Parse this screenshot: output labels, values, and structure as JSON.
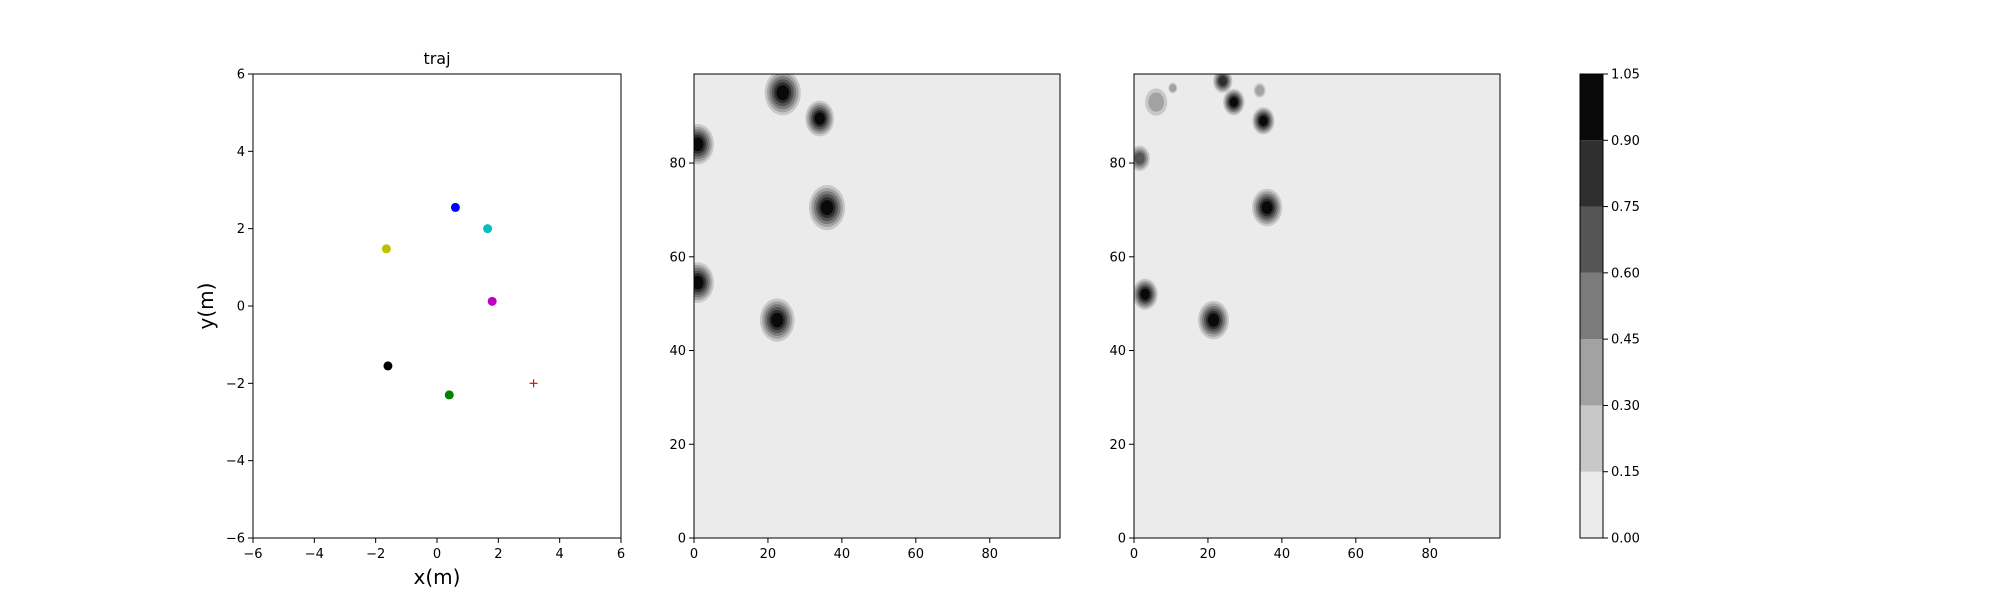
{
  "chart_data": [
    {
      "type": "scatter",
      "title": "traj",
      "xlabel": "x(m)",
      "ylabel": "y(m)",
      "xlim": [
        -6,
        6
      ],
      "ylim": [
        -6,
        6
      ],
      "xticks": [
        -6,
        -4,
        -2,
        0,
        2,
        4,
        6
      ],
      "yticks": [
        -6,
        -4,
        -2,
        0,
        2,
        4,
        6
      ],
      "grid": false,
      "points": [
        {
          "x": 0.6,
          "y": 2.55,
          "color": "#0000ff",
          "marker": "circle"
        },
        {
          "x": 1.65,
          "y": 2.0,
          "color": "#00bfbf",
          "marker": "circle"
        },
        {
          "x": -1.65,
          "y": 1.48,
          "color": "#bfbf00",
          "marker": "circle"
        },
        {
          "x": 1.8,
          "y": 0.12,
          "color": "#bf00bf",
          "marker": "circle"
        },
        {
          "x": -1.6,
          "y": -1.55,
          "color": "#000000",
          "marker": "circle"
        },
        {
          "x": 0.4,
          "y": -2.3,
          "color": "#008000",
          "marker": "circle"
        },
        {
          "x": 3.15,
          "y": -2.0,
          "color": "#ff0000",
          "marker": "plus"
        }
      ]
    },
    {
      "type": "heatmap",
      "title": "",
      "xlim": [
        0,
        99
      ],
      "ylim": [
        0,
        99
      ],
      "xticks": [
        0,
        20,
        40,
        60,
        80
      ],
      "yticks": [
        0,
        20,
        40,
        60,
        80
      ],
      "background_level": 0.05,
      "blobs": [
        {
          "x": 24,
          "y": 95,
          "r": 4.5,
          "peak": 1.0
        },
        {
          "x": 34,
          "y": 89.5,
          "r": 3.5,
          "peak": 1.0
        },
        {
          "x": 1,
          "y": 84,
          "r": 4,
          "peak": 1.0
        },
        {
          "x": 36,
          "y": 70.5,
          "r": 4.5,
          "peak": 1.0
        },
        {
          "x": 1,
          "y": 54.5,
          "r": 4,
          "peak": 1.0
        },
        {
          "x": 22.5,
          "y": 46.5,
          "r": 4.3,
          "peak": 1.0
        }
      ]
    },
    {
      "type": "heatmap",
      "title": "",
      "xlim": [
        0,
        99
      ],
      "ylim": [
        0,
        99
      ],
      "xticks": [
        0,
        20,
        40,
        60,
        80
      ],
      "yticks": [
        0,
        20,
        40,
        60,
        80
      ],
      "background_level": 0.05,
      "blobs": [
        {
          "x": 6,
          "y": 93,
          "r": 2.6,
          "peak": 0.35
        },
        {
          "x": 10.5,
          "y": 96,
          "r": 0.8,
          "peak": 0.3
        },
        {
          "x": 24,
          "y": 97.5,
          "r": 2.2,
          "peak": 0.8
        },
        {
          "x": 27,
          "y": 93,
          "r": 2.5,
          "peak": 0.95
        },
        {
          "x": 34,
          "y": 95.5,
          "r": 1.2,
          "peak": 0.3
        },
        {
          "x": 35,
          "y": 89,
          "r": 2.6,
          "peak": 0.95
        },
        {
          "x": 1.5,
          "y": 81,
          "r": 2.4,
          "peak": 0.7
        },
        {
          "x": 36,
          "y": 70.5,
          "r": 3.7,
          "peak": 1.0
        },
        {
          "x": 3,
          "y": 52,
          "r": 3.0,
          "peak": 0.95
        },
        {
          "x": 21.5,
          "y": 46.5,
          "r": 3.8,
          "peak": 1.0
        }
      ]
    },
    {
      "type": "colorbar",
      "levels": [
        0.0,
        0.15,
        0.3,
        0.45,
        0.6,
        0.75,
        0.9,
        1.05
      ],
      "tick_labels": [
        "0.00",
        "0.15",
        "0.30",
        "0.45",
        "0.60",
        "0.75",
        "0.90",
        "1.05"
      ],
      "band_colors": [
        "#ebebeb",
        "#c8c8c8",
        "#a2a2a2",
        "#7b7b7b",
        "#555555",
        "#2f2f2f",
        "#090909"
      ]
    }
  ]
}
